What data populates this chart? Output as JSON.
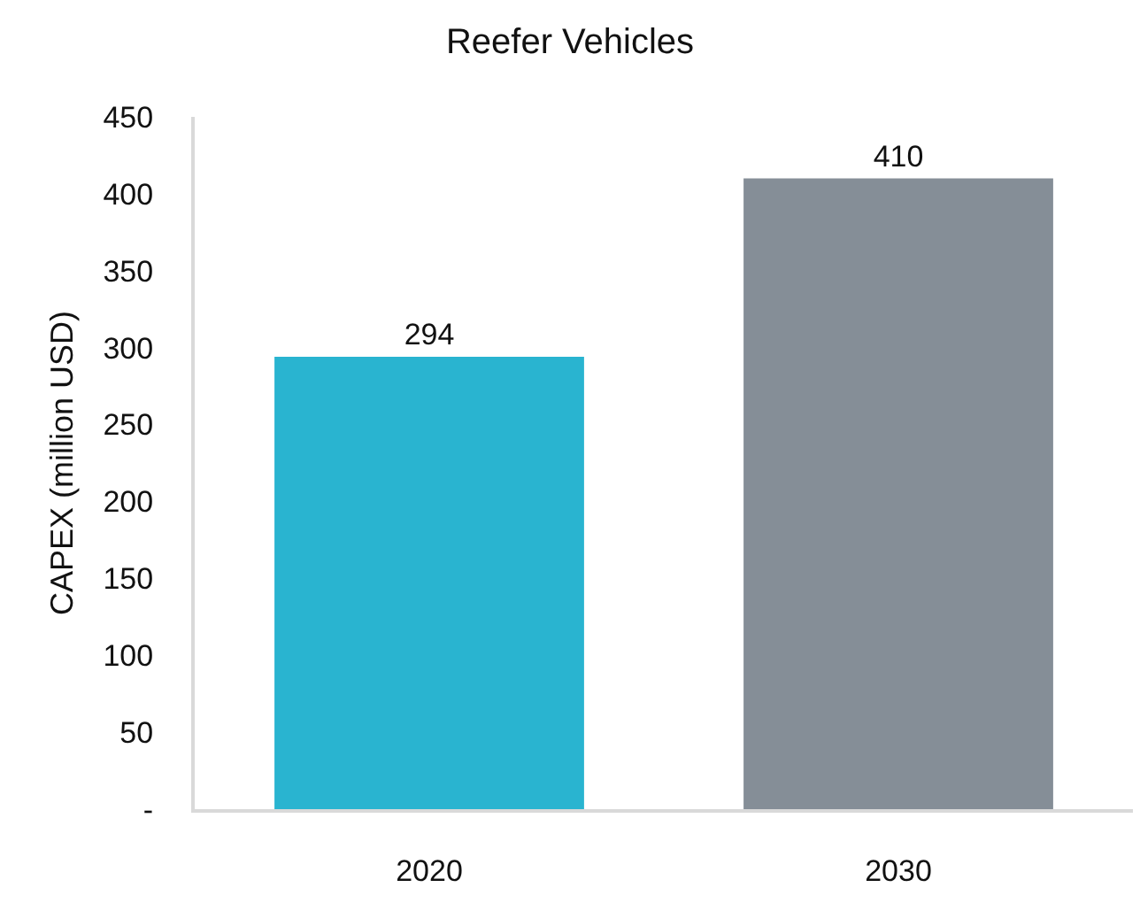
{
  "chart_data": {
    "type": "bar",
    "title": "Reefer Vehicles",
    "ylabel": "CAPEX (million USD)",
    "categories": [
      "2020",
      "2030"
    ],
    "values": [
      294,
      410
    ],
    "colors": [
      "#29b4d0",
      "#858e97"
    ],
    "ylim": [
      0,
      450
    ],
    "yticks": [
      {
        "value": 0,
        "label": "-"
      },
      50,
      100,
      150,
      200,
      250,
      300,
      350,
      400,
      450
    ],
    "data_labels": true
  }
}
